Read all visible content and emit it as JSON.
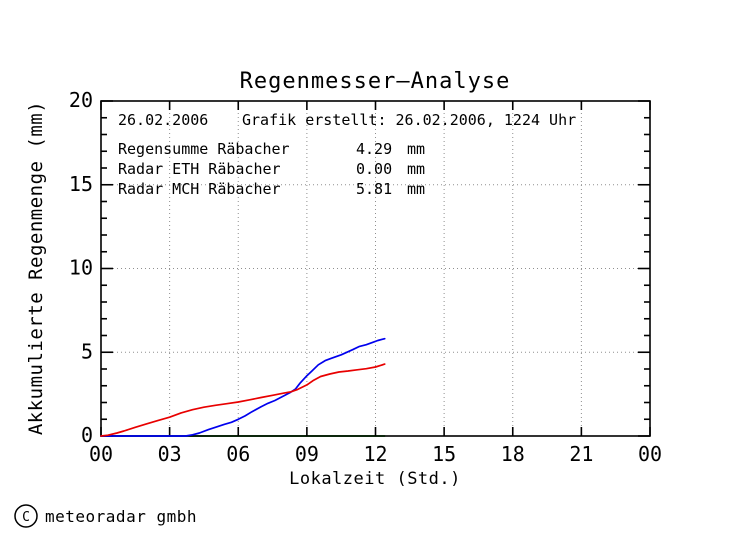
{
  "title": "Regenmesser—Analyse",
  "header": {
    "date": "26.02.2006",
    "created": "Grafik erstellt: 26.02.2006, 1224 Uhr"
  },
  "legend": [
    {
      "label": "Regensumme Räbacher",
      "value": "4.29",
      "unit": "mm",
      "color": "#e80000"
    },
    {
      "label": "Radar ETH Räbacher",
      "value": "0.00",
      "unit": "mm",
      "color": "#00a800"
    },
    {
      "label": "Radar MCH Räbacher",
      "value": "5.81",
      "unit": "mm",
      "color": "#0000ee"
    }
  ],
  "footer": {
    "copyright_symbol": "C",
    "copyright_text": "meteoradar gmbh"
  },
  "colors": {
    "axis": "#000000",
    "grid": "#8f8f8f",
    "background": "#ffffff"
  },
  "chart_data": {
    "type": "line",
    "title": "Regenmesser—Analyse",
    "xlabel": "Lokalzeit (Std.)",
    "ylabel": "Akkumulierte Regenmenge (mm)",
    "xlim": [
      0,
      24
    ],
    "ylim": [
      0,
      20
    ],
    "x_ticks": {
      "values": [
        0,
        3,
        6,
        9,
        12,
        15,
        18,
        21,
        24
      ],
      "labels": [
        "00",
        "03",
        "06",
        "09",
        "12",
        "15",
        "18",
        "21",
        "00"
      ]
    },
    "y_ticks": {
      "values": [
        0,
        5,
        10,
        15,
        20
      ],
      "labels": [
        "0",
        "5",
        "10",
        "15",
        "20"
      ]
    },
    "y_minor_step": 1,
    "grid": {
      "x": [
        3,
        6,
        9,
        12,
        15,
        18,
        21
      ],
      "y": [
        5,
        10,
        15
      ]
    },
    "legend_position": "top-left-inside",
    "series": [
      {
        "name": "Radar ETH Räbacher",
        "total_mm": 0.0,
        "color": "#00a800",
        "under_axis": true,
        "points": [
          [
            0,
            0
          ],
          [
            12.4,
            0
          ]
        ]
      },
      {
        "name": "Radar MCH Räbacher",
        "total_mm": 5.81,
        "color": "#0000ee",
        "under_axis": false,
        "points": [
          [
            0,
            0
          ],
          [
            3.7,
            0
          ],
          [
            4,
            0.07
          ],
          [
            4.3,
            0.18
          ],
          [
            4.7,
            0.38
          ],
          [
            5,
            0.52
          ],
          [
            5.4,
            0.7
          ],
          [
            5.7,
            0.82
          ],
          [
            6,
            1.0
          ],
          [
            6.3,
            1.2
          ],
          [
            6.6,
            1.45
          ],
          [
            7,
            1.75
          ],
          [
            7.3,
            1.95
          ],
          [
            7.6,
            2.12
          ],
          [
            8,
            2.4
          ],
          [
            8.3,
            2.62
          ],
          [
            8.5,
            2.8
          ],
          [
            8.7,
            3.15
          ],
          [
            9,
            3.6
          ],
          [
            9.2,
            3.85
          ],
          [
            9.5,
            4.25
          ],
          [
            9.8,
            4.5
          ],
          [
            10.1,
            4.65
          ],
          [
            10.5,
            4.85
          ],
          [
            11,
            5.15
          ],
          [
            11.3,
            5.35
          ],
          [
            11.6,
            5.45
          ],
          [
            11.9,
            5.6
          ],
          [
            12.1,
            5.7
          ],
          [
            12.4,
            5.81
          ]
        ]
      },
      {
        "name": "Regensumme Räbacher",
        "total_mm": 4.29,
        "color": "#e80000",
        "under_axis": false,
        "points": [
          [
            0,
            0
          ],
          [
            0.3,
            0.05
          ],
          [
            0.7,
            0.18
          ],
          [
            1,
            0.3
          ],
          [
            1.5,
            0.52
          ],
          [
            2,
            0.73
          ],
          [
            2.5,
            0.93
          ],
          [
            3,
            1.12
          ],
          [
            3.5,
            1.38
          ],
          [
            4,
            1.57
          ],
          [
            4.5,
            1.72
          ],
          [
            5,
            1.83
          ],
          [
            5.5,
            1.93
          ],
          [
            6,
            2.03
          ],
          [
            6.5,
            2.16
          ],
          [
            7,
            2.3
          ],
          [
            7.5,
            2.43
          ],
          [
            8,
            2.56
          ],
          [
            8.3,
            2.64
          ],
          [
            8.6,
            2.78
          ],
          [
            9,
            3.05
          ],
          [
            9.3,
            3.33
          ],
          [
            9.6,
            3.55
          ],
          [
            10,
            3.7
          ],
          [
            10.4,
            3.82
          ],
          [
            10.8,
            3.88
          ],
          [
            11.2,
            3.95
          ],
          [
            11.6,
            4.02
          ],
          [
            12,
            4.12
          ],
          [
            12.2,
            4.2
          ],
          [
            12.4,
            4.29
          ]
        ]
      }
    ]
  }
}
